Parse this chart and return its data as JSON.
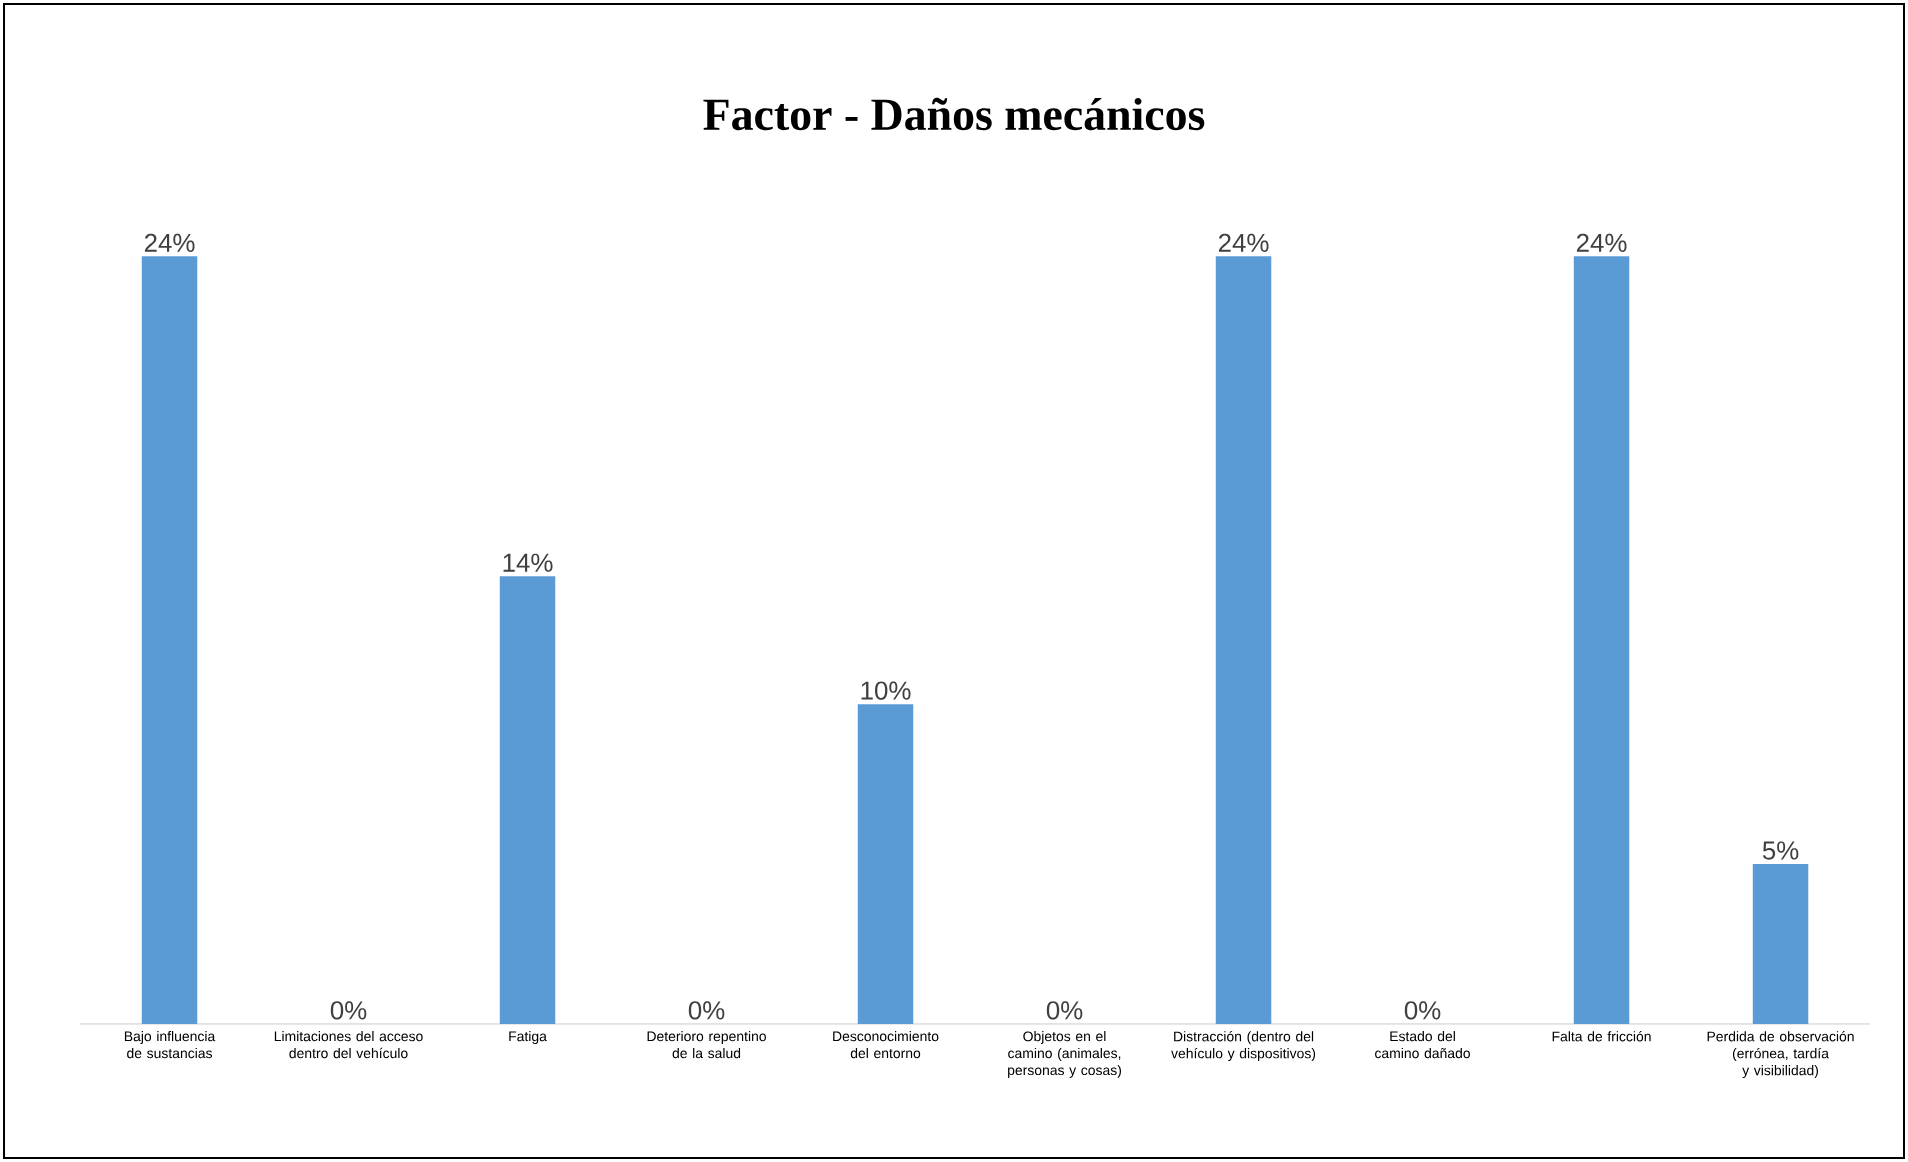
{
  "chart_data": {
    "type": "bar",
    "title": "Factor - Daños mecánicos",
    "categories": [
      "Bajo influencia de sustancias",
      "Limitaciones del acceso dentro del vehículo",
      "Fatiga",
      "Deterioro repentino de la salud",
      "Desconocimiento del entorno",
      "Objetos en el camino (animales, personas y cosas)",
      "Distracción (dentro del vehículo y dispositivos)",
      "Estado del camino dañado",
      "Falta de fricción",
      "Perdida de observación (errónea, tardía y visibilidad)"
    ],
    "values": [
      24,
      0,
      14,
      0,
      10,
      0,
      24,
      0,
      24,
      5
    ],
    "value_labels": [
      "24%",
      "0%",
      "14%",
      "0%",
      "10%",
      "0%",
      "24%",
      "0%",
      "24%",
      "5%"
    ],
    "color": "#5b9bd5",
    "tick_labels": "x"
  }
}
